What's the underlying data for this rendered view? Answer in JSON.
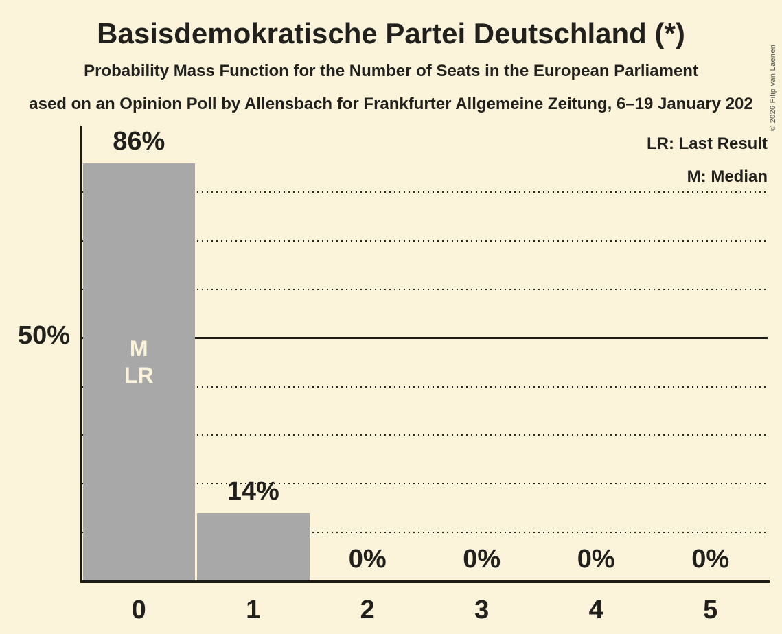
{
  "page": {
    "background_color": "#fbf4db",
    "text_color": "#21201c",
    "copyright": "© 2026 Filip van Laenen"
  },
  "legend": {
    "lr": "LR: Last Result",
    "m": "M: Median"
  },
  "chart_data": {
    "type": "bar",
    "title": "Basisdemokratische Partei Deutschland (*)",
    "subtitle": "Probability Mass Function for the Number of Seats in the European Parliament",
    "source_line": "ased on an Opinion Poll by Allensbach for Frankfurter Allgemeine Zeitung, 6–19 January 202",
    "xlabel": "",
    "ylabel": "",
    "categories": [
      "0",
      "1",
      "2",
      "3",
      "4",
      "5"
    ],
    "values": [
      86,
      14,
      0,
      0,
      0,
      0
    ],
    "value_labels": [
      "86%",
      "14%",
      "0%",
      "0%",
      "0%",
      "0%"
    ],
    "y_axis_tick_label": "50%",
    "y_axis_tick_value": 50,
    "ylim": [
      0,
      93.7
    ],
    "gridlines_pct": [
      10,
      20,
      30,
      40,
      50,
      60,
      70,
      80
    ],
    "solid_gridline_pct": 50,
    "grid_style": "dotted",
    "legend_position": "top-right",
    "annotations": {
      "category": "0",
      "lines": [
        "M",
        "LR"
      ]
    },
    "bar_color": "#a8a8a8",
    "axis_color": "#1c1b18",
    "label_color": "#21201c"
  }
}
